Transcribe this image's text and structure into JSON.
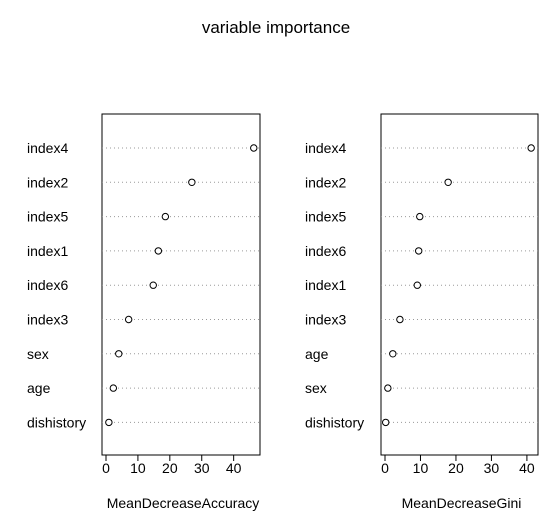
{
  "chart_data": {
    "type": "dotchart",
    "title": "variable importance",
    "grid": "dotted horizontal guide lines",
    "panels": [
      {
        "xlabel": "MeanDecreaseAccuracy",
        "xlim": [
          0,
          47
        ],
        "xticks": [
          0,
          10,
          20,
          30,
          40
        ],
        "categories": [
          "index4",
          "index2",
          "index5",
          "index1",
          "index6",
          "index3",
          "sex",
          "age",
          "dishistory"
        ],
        "values": [
          46.3,
          26.9,
          18.6,
          16.4,
          14.8,
          7.1,
          4.0,
          2.3,
          0.9
        ]
      },
      {
        "xlabel": "MeanDecreaseGini",
        "xlim": [
          0,
          42
        ],
        "xticks": [
          0,
          10,
          20,
          30,
          40
        ],
        "categories": [
          "index4",
          "index2",
          "index5",
          "index6",
          "index1",
          "index3",
          "age",
          "sex",
          "dishistory"
        ],
        "values": [
          41.2,
          17.8,
          9.8,
          9.5,
          9.1,
          4.2,
          2.2,
          0.8,
          0.2
        ]
      }
    ]
  }
}
